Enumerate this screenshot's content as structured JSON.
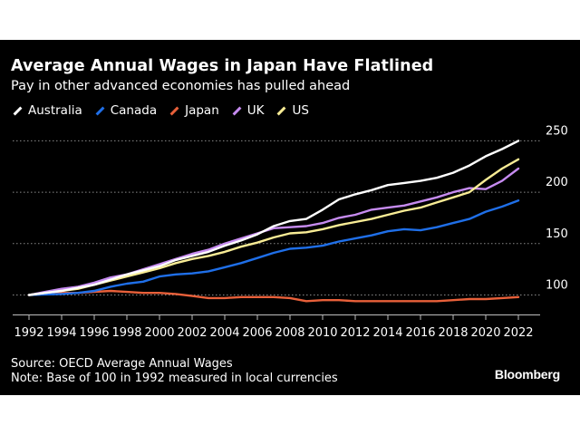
{
  "header": {
    "title": "Average Annual Wages in Japan Have Flatlined",
    "subtitle": "Pay in other advanced economies has pulled ahead"
  },
  "footer": {
    "source": "Source: OECD Average Annual Wages",
    "note": "Note: Base of 100 in 1992 measured in local currencies",
    "brand": "Bloomberg"
  },
  "chart_data": {
    "type": "line",
    "title": "Average Annual Wages in Japan Have Flatlined",
    "subtitle": "Pay in other advanced economies has pulled ahead",
    "xlabel": "",
    "ylabel": "",
    "xlim": [
      1992,
      2022
    ],
    "ylim": [
      82,
      265
    ],
    "grid": true,
    "legend_position": "top-left",
    "x_tick_labels": [
      "1992",
      "1994",
      "1996",
      "1998",
      "2000",
      "2002",
      "2004",
      "2006",
      "2008",
      "2010",
      "2012",
      "2014",
      "2016",
      "2018",
      "2020",
      "2022"
    ],
    "y_ticks": [
      100,
      150,
      200,
      250
    ],
    "x": [
      1992,
      1993,
      1994,
      1995,
      1996,
      1997,
      1998,
      1999,
      2000,
      2001,
      2002,
      2003,
      2004,
      2005,
      2006,
      2007,
      2008,
      2009,
      2010,
      2011,
      2012,
      2013,
      2014,
      2015,
      2016,
      2017,
      2018,
      2019,
      2020,
      2021,
      2022
    ],
    "series": [
      {
        "name": "Australia",
        "color": "#ffffff",
        "values": [
          100,
          102,
          104,
          107,
          110,
          115,
          120,
          124,
          128,
          134,
          138,
          142,
          148,
          153,
          159,
          167,
          172,
          174,
          183,
          193,
          198,
          202,
          207,
          209,
          211,
          214,
          219,
          226,
          235,
          242,
          250
        ]
      },
      {
        "name": "Canada",
        "color": "#1f6fe8",
        "values": [
          100,
          100.5,
          101,
          102,
          104,
          108,
          111,
          113,
          118,
          120,
          121,
          123,
          127,
          131,
          136,
          141,
          145,
          146,
          148,
          152,
          155,
          158,
          162,
          164,
          163,
          166,
          170,
          174,
          181,
          186,
          192
        ]
      },
      {
        "name": "Japan",
        "color": "#e8603a",
        "values": [
          100,
          101,
          102,
          102,
          103,
          104,
          103,
          102,
          102,
          101,
          99,
          97,
          97,
          98,
          98,
          98,
          97,
          94,
          95,
          95,
          94,
          94,
          94,
          94,
          94,
          94,
          95,
          96,
          96,
          97,
          98
        ]
      },
      {
        "name": "UK",
        "color": "#c68bf0",
        "values": [
          100,
          103,
          106,
          108,
          112,
          117,
          120,
          125,
          130,
          135,
          140,
          144,
          150,
          155,
          160,
          165,
          166,
          167,
          170,
          175,
          178,
          183,
          185,
          187,
          191,
          195,
          200,
          204,
          203,
          211,
          223
        ]
      },
      {
        "name": "US",
        "color": "#f8ec95",
        "values": [
          100,
          102,
          104,
          106,
          110,
          114,
          118,
          122,
          126,
          131,
          135,
          138,
          142,
          147,
          151,
          156,
          160,
          161,
          164,
          168,
          171,
          174,
          178,
          182,
          185,
          190,
          195,
          200,
          212,
          223,
          232
        ]
      }
    ]
  }
}
